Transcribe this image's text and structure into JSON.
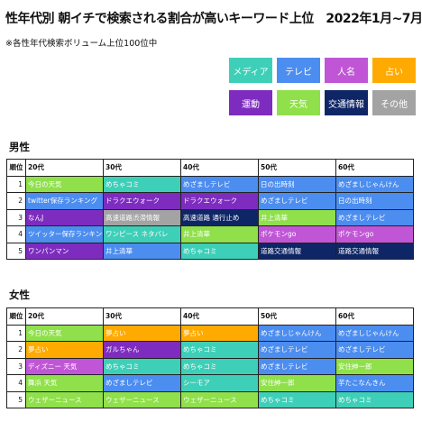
{
  "title": "性年代別 朝イチで検索される割合が高いキーワード上位　2022年1月~7月",
  "subtitle": "※各性年代検索ボリューム上位100位中",
  "categories": {
    "media": {
      "label": "メディア",
      "color": "#3ecfb8",
      "text": "#ffffff"
    },
    "tv": {
      "label": "テレビ",
      "color": "#4c8df0",
      "text": "#ffffff"
    },
    "person": {
      "label": "人名",
      "color": "#c056d6",
      "text": "#ffffff"
    },
    "fortune": {
      "label": "占い",
      "color": "#ffaa00",
      "text": "#ffffff"
    },
    "traffic": {
      "label": "運動",
      "color": "#7d2cbf",
      "text": "#ffffff"
    },
    "weather": {
      "label": "天気",
      "color": "#8fe04a",
      "text": "#ffffff"
    },
    "transit": {
      "label": "交通情報",
      "color": "#0f2666",
      "text": "#ffffff"
    },
    "other": {
      "label": "その他",
      "color": "#a3a3a3",
      "text": "#ffffff"
    }
  },
  "legend_order": [
    "media",
    "tv",
    "person",
    "fortune",
    "traffic",
    "weather",
    "transit",
    "other"
  ],
  "chart_data": {
    "type": "table",
    "title": "性年代別 朝イチで検索される割合が高いキーワード上位　2022年1月~7月",
    "note": "※各性年代検索ボリューム上位100位中",
    "columns": [
      "順位",
      "20代",
      "30代",
      "40代",
      "50代",
      "60代"
    ],
    "tables": [
      {
        "label": "男性",
        "rows": [
          {
            "rank": "1",
            "cells": [
              [
                "今日の天気",
                "weather"
              ],
              [
                "めちゃコミ",
                "media"
              ],
              [
                "めざましテレビ",
                "tv"
              ],
              [
                "日の出時刻",
                "tv"
              ],
              [
                "めざましじゃんけん",
                "tv"
              ]
            ]
          },
          {
            "rank": "2",
            "cells": [
              [
                "twitter保存ランキング",
                "tv"
              ],
              [
                "ドラクエウォーク",
                "traffic"
              ],
              [
                "ドラクエウォーク",
                "traffic"
              ],
              [
                "めざましテレビ",
                "tv"
              ],
              [
                "日の出時刻",
                "tv"
              ]
            ]
          },
          {
            "rank": "3",
            "cells": [
              [
                "なんJ",
                "traffic"
              ],
              [
                "高速道路渋滞情報",
                "other"
              ],
              [
                "高速道路 通行止め",
                "transit"
              ],
              [
                "井上清華",
                "weather"
              ],
              [
                "めざましテレビ",
                "tv"
              ]
            ]
          },
          {
            "rank": "4",
            "cells": [
              [
                "ツイッター保存ランキング",
                "tv"
              ],
              [
                "ワンピース ネタバレ",
                "media"
              ],
              [
                "井上清華",
                "weather"
              ],
              [
                "ポケモンgo",
                "person"
              ],
              [
                "ポケモンgo",
                "person"
              ]
            ]
          },
          {
            "rank": "5",
            "cells": [
              [
                "ワンパンマン",
                "traffic"
              ],
              [
                "井上清華",
                "tv"
              ],
              [
                "めちゃコミ",
                "media"
              ],
              [
                "道路交通情報",
                "transit"
              ],
              [
                "道路交通情報",
                "transit"
              ]
            ]
          }
        ]
      },
      {
        "label": "女性",
        "rows": [
          {
            "rank": "1",
            "cells": [
              [
                "今日の天気",
                "weather"
              ],
              [
                "夢占い",
                "fortune"
              ],
              [
                "夢占い",
                "fortune"
              ],
              [
                "めざましじゃんけん",
                "tv"
              ],
              [
                "めざましじゃんけん",
                "tv"
              ]
            ]
          },
          {
            "rank": "2",
            "cells": [
              [
                "夢占い",
                "fortune"
              ],
              [
                "ガルちゃん",
                "traffic"
              ],
              [
                "めちゃコミ",
                "media"
              ],
              [
                "めざましテレビ",
                "tv"
              ],
              [
                "めざましテレビ",
                "tv"
              ]
            ]
          },
          {
            "rank": "3",
            "cells": [
              [
                "ディズニー 天気",
                "person"
              ],
              [
                "めちゃコミ",
                "media"
              ],
              [
                "めちゃコミ",
                "media"
              ],
              [
                "めざましテレビ",
                "tv"
              ],
              [
                "安住紳一郎",
                "weather"
              ]
            ]
          },
          {
            "rank": "4",
            "cells": [
              [
                "舞浜 天気",
                "weather"
              ],
              [
                "めざましテレビ",
                "tv"
              ],
              [
                "シーモア",
                "media"
              ],
              [
                "安住紳一郎",
                "weather"
              ],
              [
                "芋たこなんきん",
                "tv"
              ]
            ]
          },
          {
            "rank": "5",
            "cells": [
              [
                "ウェザーニュース",
                "weather"
              ],
              [
                "ウェザーニュース",
                "weather"
              ],
              [
                "ウェザーニュース",
                "weather"
              ],
              [
                "めちゃコミ",
                "media"
              ],
              [
                "めちゃコミ",
                "media"
              ]
            ]
          }
        ]
      }
    ]
  }
}
